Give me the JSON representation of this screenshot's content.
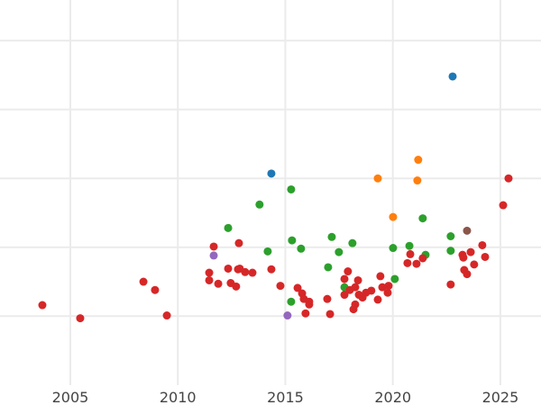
{
  "chart_data": {
    "type": "scatter",
    "title": "",
    "xlabel": "",
    "ylabel": "",
    "xlim": [
      2001.73,
      2026.89
    ],
    "ylim": [
      -0.29,
      5.59
    ],
    "grid": true,
    "x_ticks": [
      2005,
      2010,
      2015,
      2020,
      2025
    ],
    "x_tick_labels": [
      "2005",
      "2010",
      "2015",
      "2020",
      "2025"
    ],
    "y_gridlines": [
      1,
      2,
      3,
      4,
      5
    ],
    "y_tick_labels_shown": false,
    "legend": "none",
    "series": [
      {
        "color": "#1f77b4",
        "points": [
          [
            2022.78,
            4.48
          ],
          [
            2014.35,
            3.07
          ]
        ]
      },
      {
        "color": "#ff7f0e",
        "points": [
          [
            2021.18,
            3.27
          ],
          [
            2019.3,
            3.0
          ],
          [
            2021.14,
            2.97
          ],
          [
            2020.01,
            2.44
          ]
        ]
      },
      {
        "color": "#2ca02c",
        "points": [
          [
            2015.27,
            2.84
          ],
          [
            2013.8,
            2.62
          ],
          [
            2012.34,
            2.28
          ],
          [
            2021.39,
            2.42
          ],
          [
            2022.69,
            2.16
          ],
          [
            2017.16,
            2.15
          ],
          [
            2015.31,
            2.1
          ],
          [
            2018.12,
            2.06
          ],
          [
            2014.18,
            1.94
          ],
          [
            2015.73,
            1.98
          ],
          [
            2017.49,
            1.93
          ],
          [
            2020.01,
            1.99
          ],
          [
            2020.77,
            2.02
          ],
          [
            2021.52,
            1.89
          ],
          [
            2022.69,
            1.95
          ],
          [
            2016.99,
            1.71
          ],
          [
            2020.09,
            1.54
          ],
          [
            2017.75,
            1.42
          ],
          [
            2015.27,
            1.21
          ]
        ]
      },
      {
        "color": "#9467bd",
        "points": [
          [
            2011.67,
            1.88
          ],
          [
            2015.1,
            1.01
          ]
        ]
      },
      {
        "color": "#8c564b",
        "points": [
          [
            2023.45,
            2.24
          ]
        ]
      },
      {
        "color": "#d62728",
        "points": [
          [
            2003.7,
            1.16
          ],
          [
            2005.46,
            0.97
          ],
          [
            2008.4,
            1.5
          ],
          [
            2008.94,
            1.38
          ],
          [
            2009.49,
            1.01
          ],
          [
            2011.67,
            2.01
          ],
          [
            2012.84,
            2.06
          ],
          [
            2011.46,
            1.63
          ],
          [
            2011.46,
            1.52
          ],
          [
            2011.88,
            1.47
          ],
          [
            2012.34,
            1.69
          ],
          [
            2012.46,
            1.48
          ],
          [
            2012.71,
            1.43
          ],
          [
            2012.8,
            1.68
          ],
          [
            2012.88,
            1.69
          ],
          [
            2013.13,
            1.64
          ],
          [
            2013.47,
            1.63
          ],
          [
            2014.35,
            1.68
          ],
          [
            2014.77,
            1.44
          ],
          [
            2015.57,
            1.41
          ],
          [
            2015.78,
            1.33
          ],
          [
            2015.86,
            1.25
          ],
          [
            2016.11,
            1.21
          ],
          [
            2016.11,
            1.17
          ],
          [
            2016.95,
            1.25
          ],
          [
            2017.08,
            1.03
          ],
          [
            2015.94,
            1.04
          ],
          [
            2017.91,
            1.65
          ],
          [
            2017.75,
            1.54
          ],
          [
            2018.38,
            1.52
          ],
          [
            2017.75,
            1.31
          ],
          [
            2018.0,
            1.38
          ],
          [
            2018.25,
            1.42
          ],
          [
            2018.42,
            1.31
          ],
          [
            2018.59,
            1.27
          ],
          [
            2018.75,
            1.34
          ],
          [
            2019.0,
            1.37
          ],
          [
            2019.3,
            1.24
          ],
          [
            2019.42,
            1.58
          ],
          [
            2019.51,
            1.42
          ],
          [
            2019.8,
            1.44
          ],
          [
            2019.76,
            1.34
          ],
          [
            2018.25,
            1.17
          ],
          [
            2018.17,
            1.1
          ],
          [
            2020.68,
            1.77
          ],
          [
            2020.81,
            1.9
          ],
          [
            2021.1,
            1.76
          ],
          [
            2021.39,
            1.84
          ],
          [
            2022.69,
            1.46
          ],
          [
            2023.24,
            1.89
          ],
          [
            2023.28,
            1.85
          ],
          [
            2023.32,
            1.67
          ],
          [
            2023.45,
            1.61
          ],
          [
            2023.62,
            1.93
          ],
          [
            2023.78,
            1.75
          ],
          [
            2024.16,
            2.03
          ],
          [
            2024.29,
            1.86
          ],
          [
            2025.13,
            2.61
          ],
          [
            2025.38,
            3.0
          ]
        ]
      }
    ]
  }
}
